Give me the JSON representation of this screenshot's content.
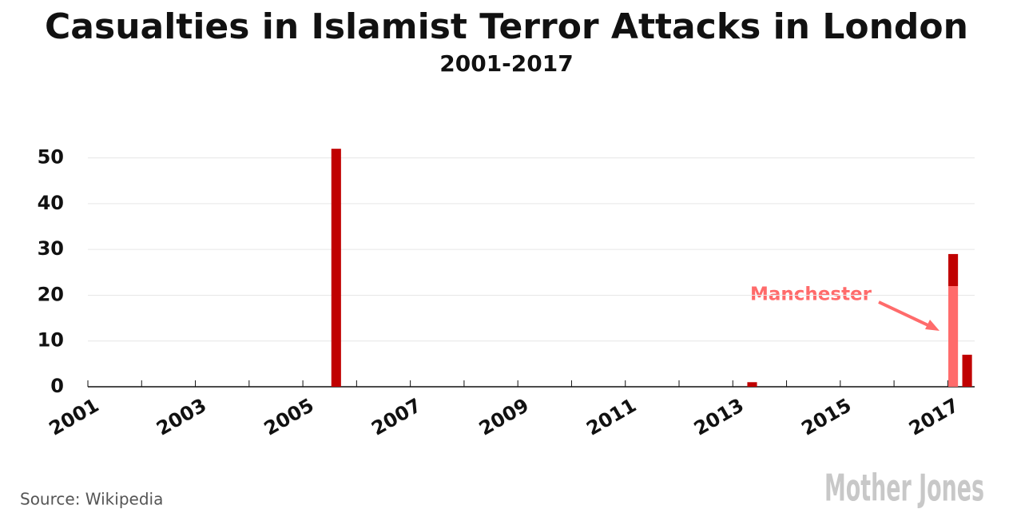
{
  "chart_data": {
    "type": "stacked-bar",
    "title": "Casualties in Islamist Terror Attacks in London",
    "subtitle": "2001-2017",
    "x": [
      2005.62,
      2013.36,
      2017.1,
      2017.36
    ],
    "series": [
      {
        "name": "Manchester",
        "color": "#ff6b6b",
        "values": [
          null,
          null,
          22,
          null
        ]
      },
      {
        "color": "#c00000",
        "values": [
          52,
          1,
          7,
          7
        ]
      }
    ],
    "xlim": [
      2001,
      2017.5
    ],
    "xticks": [
      2001,
      2003,
      2005,
      2007,
      2009,
      2011,
      2013,
      2015,
      2017
    ],
    "xminorticks": [
      2002,
      2004,
      2006,
      2008,
      2010,
      2012,
      2014,
      2016
    ],
    "ylim": [
      0,
      55
    ],
    "yticks": [
      0,
      10,
      20,
      30,
      40,
      50
    ],
    "grid": true,
    "source": "Source: Wikipedia",
    "logo": "Mother Jones"
  }
}
